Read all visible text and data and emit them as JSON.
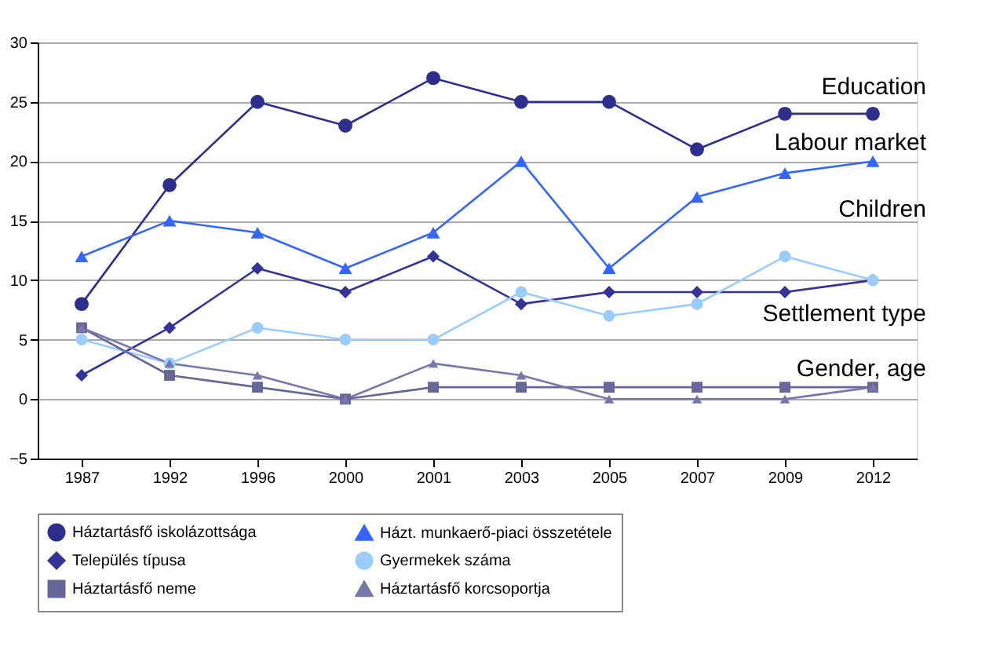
{
  "chart_data": {
    "type": "line",
    "categories": [
      "1987",
      "1992",
      "1996",
      "2000",
      "2001",
      "2003",
      "2005",
      "2007",
      "2009",
      "2012"
    ],
    "series": [
      {
        "name": "Háztartásfő iskolázottsága",
        "color": "#2e2e8c",
        "marker": "circle",
        "values": [
          8,
          18,
          25,
          23,
          27,
          25,
          25,
          21,
          24,
          24
        ]
      },
      {
        "name": "Házt. munkaerő-piaci összetétele",
        "color": "#3366ff",
        "marker": "triangle",
        "values": [
          12,
          15,
          14,
          11,
          14,
          20,
          11,
          17,
          19,
          20
        ]
      },
      {
        "name": "Település típusa",
        "color": "#333399",
        "marker": "diamond",
        "values": [
          2,
          6,
          11,
          9,
          12,
          8,
          9,
          9,
          9,
          10
        ]
      },
      {
        "name": "Gyermekek száma",
        "color": "#99ccff",
        "marker": "circle",
        "values": [
          5,
          3,
          6,
          5,
          5,
          9,
          7,
          8,
          12,
          10
        ]
      },
      {
        "name": "Háztartásfő neme",
        "color": "#666699",
        "marker": "square",
        "values": [
          6,
          2,
          1,
          0,
          1,
          1,
          1,
          1,
          1,
          1
        ]
      },
      {
        "name": "Háztartásfő korcsoportja",
        "color": "#7777aa",
        "marker": "triangle",
        "values": [
          6,
          3,
          2,
          0,
          3,
          2,
          0,
          0,
          0,
          1
        ]
      }
    ],
    "ylim": [
      -5,
      30
    ],
    "yticks": [
      -5,
      0,
      5,
      10,
      15,
      20,
      25,
      30
    ],
    "grid": "y",
    "legend": "bottom",
    "annotations": [
      "Education",
      "Labour market",
      "Children",
      "Settlement type",
      "Gender, age"
    ]
  }
}
